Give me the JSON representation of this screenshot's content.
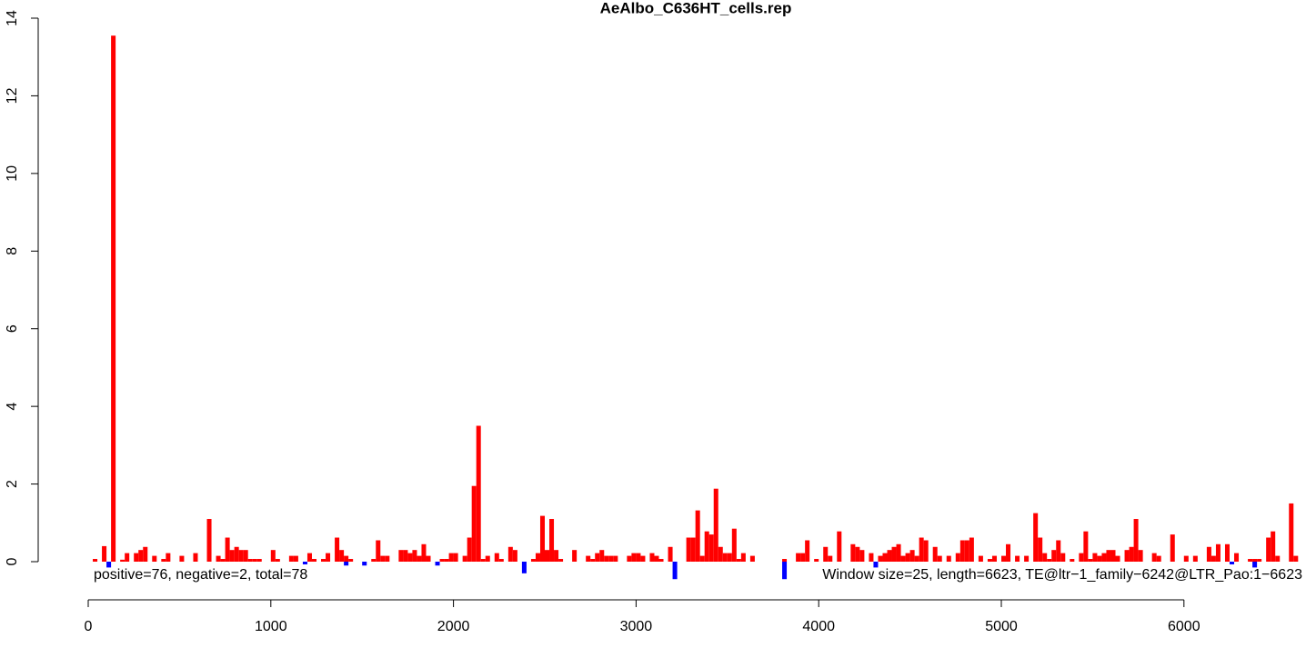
{
  "chart_data": {
    "type": "bar",
    "title": "AeAlbo_C636HT_cells.rep",
    "annotations": [
      "positive=76, negative=2, total=78",
      "Window size=25, length=6623, TE@ltr−1_family−6242@LTR_Pao:1−6623"
    ],
    "xlim": [
      0,
      6623
    ],
    "xticks": [
      0,
      1000,
      2000,
      3000,
      4000,
      5000,
      6000
    ],
    "ylim": [
      0,
      14
    ],
    "yticks": [
      0,
      2,
      4,
      6,
      8,
      10,
      12,
      14
    ],
    "bar_width": 25,
    "series": [
      {
        "color": "#ff0000",
        "x": [
          25,
          75,
          125,
          175,
          200,
          250,
          275,
          300,
          350,
          400,
          425,
          500,
          575,
          650,
          700,
          725,
          750,
          775,
          800,
          825,
          850,
          875,
          900,
          925,
          1000,
          1025,
          1100,
          1125,
          1200,
          1225,
          1275,
          1300,
          1350,
          1375,
          1400,
          1425,
          1550,
          1575,
          1600,
          1625,
          1700,
          1725,
          1750,
          1775,
          1800,
          1825,
          1850,
          1925,
          1950,
          1975,
          2000,
          2050,
          2075,
          2100,
          2125,
          2150,
          2175,
          2225,
          2250,
          2300,
          2325,
          2425,
          2450,
          2475,
          2500,
          2525,
          2550,
          2575,
          2650,
          2725,
          2750,
          2775,
          2800,
          2825,
          2850,
          2875,
          2950,
          2975,
          3000,
          3025,
          3075,
          3100,
          3125,
          3175,
          3275,
          3300,
          3325,
          3350,
          3375,
          3400,
          3425,
          3450,
          3475,
          3500,
          3525,
          3550,
          3575,
          3625,
          3800,
          3875,
          3900,
          3925,
          3975,
          4025,
          4050,
          4100,
          4175,
          4200,
          4225,
          4275,
          4325,
          4350,
          4375,
          4400,
          4425,
          4450,
          4475,
          4500,
          4525,
          4550,
          4575,
          4625,
          4650,
          4700,
          4750,
          4775,
          4800,
          4825,
          4875,
          4925,
          4950,
          5000,
          5025,
          5075,
          5125,
          5175,
          5200,
          5225,
          5250,
          5275,
          5300,
          5325,
          5375,
          5425,
          5450,
          5475,
          5500,
          5525,
          5550,
          5575,
          5600,
          5625,
          5675,
          5700,
          5725,
          5750,
          5825,
          5850,
          5925,
          6000,
          6050,
          6125,
          6150,
          6175,
          6225,
          6275,
          6350,
          6375,
          6400,
          6450,
          6475,
          6500,
          6575,
          6600
        ],
        "values": [
          0.07,
          0.4,
          13.55,
          0.05,
          0.22,
          0.22,
          0.3,
          0.38,
          0.15,
          0.07,
          0.22,
          0.15,
          0.22,
          1.1,
          0.15,
          0.07,
          0.62,
          0.3,
          0.38,
          0.3,
          0.3,
          0.07,
          0.07,
          0.07,
          0.3,
          0.07,
          0.15,
          0.15,
          0.22,
          0.07,
          0.07,
          0.22,
          0.62,
          0.3,
          0.15,
          0.07,
          0.07,
          0.55,
          0.15,
          0.15,
          0.3,
          0.3,
          0.22,
          0.3,
          0.15,
          0.45,
          0.15,
          0.07,
          0.07,
          0.22,
          0.22,
          0.15,
          0.62,
          1.95,
          3.5,
          0.07,
          0.15,
          0.22,
          0.07,
          0.38,
          0.3,
          0.07,
          0.22,
          1.18,
          0.3,
          1.1,
          0.3,
          0.07,
          0.3,
          0.15,
          0.07,
          0.22,
          0.3,
          0.15,
          0.15,
          0.15,
          0.15,
          0.22,
          0.22,
          0.15,
          0.22,
          0.15,
          0.07,
          0.38,
          0.62,
          0.62,
          1.32,
          0.15,
          0.78,
          0.7,
          1.88,
          0.38,
          0.22,
          0.22,
          0.85,
          0.07,
          0.22,
          0.15,
          0.07,
          0.22,
          0.22,
          0.55,
          0.07,
          0.38,
          0.15,
          0.78,
          0.45,
          0.38,
          0.3,
          0.22,
          0.15,
          0.22,
          0.3,
          0.38,
          0.45,
          0.15,
          0.22,
          0.3,
          0.15,
          0.62,
          0.55,
          0.38,
          0.15,
          0.15,
          0.22,
          0.55,
          0.55,
          0.62,
          0.15,
          0.07,
          0.15,
          0.15,
          0.45,
          0.15,
          0.15,
          1.25,
          0.62,
          0.22,
          0.07,
          0.3,
          0.55,
          0.22,
          0.07,
          0.22,
          0.78,
          0.07,
          0.22,
          0.15,
          0.22,
          0.3,
          0.3,
          0.15,
          0.3,
          0.38,
          1.1,
          0.3,
          0.22,
          0.15,
          0.7,
          0.15,
          0.15,
          0.38,
          0.15,
          0.45,
          0.45,
          0.22,
          0.07,
          0.07,
          0.07,
          0.62,
          0.78,
          0.15,
          1.5,
          0.15
        ]
      },
      {
        "color": "#0000ff",
        "x": [
          100,
          1175,
          1400,
          1500,
          1900,
          2375,
          3200,
          3800,
          4300,
          6250,
          6375
        ],
        "values": [
          -0.15,
          -0.07,
          -0.1,
          -0.1,
          -0.1,
          -0.3,
          -0.45,
          -0.45,
          -0.15,
          -0.07,
          -0.15
        ]
      }
    ]
  }
}
